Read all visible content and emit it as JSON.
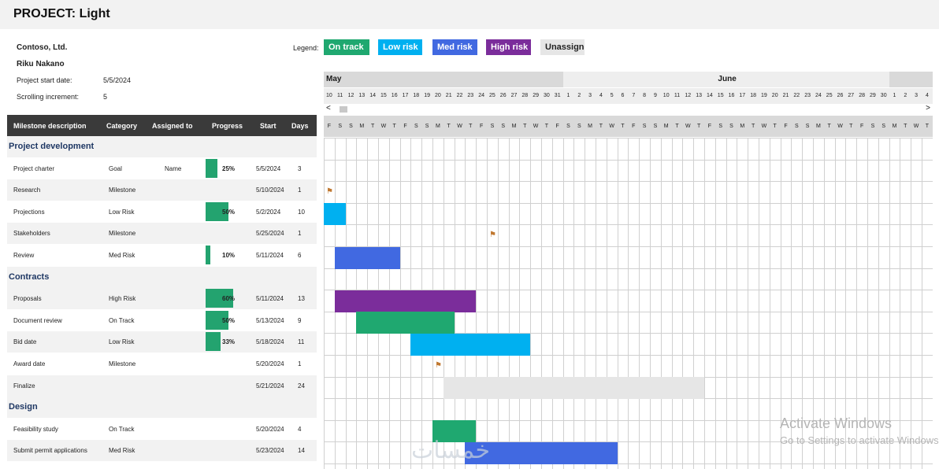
{
  "header": {
    "title": "PROJECT: Light"
  },
  "info": {
    "company": "Contoso, Ltd.",
    "manager": "Riku Nakano",
    "start_label": "Project start date:",
    "start_value": "5/5/2024",
    "scroll_label": "Scrolling increment:",
    "scroll_value": "5"
  },
  "legend": {
    "label": "Legend:",
    "items": [
      {
        "label": "On track",
        "color": "#1fa870"
      },
      {
        "label": "Low risk",
        "color": "#00b0f0"
      },
      {
        "label": "Med risk",
        "color": "#4169e1"
      },
      {
        "label": "High risk",
        "color": "#7b2d9b"
      },
      {
        "label": "Unassigned",
        "color": "#e6e6e6"
      }
    ]
  },
  "table": {
    "headers": [
      "Milestone description",
      "Category",
      "Assigned to",
      "Progress",
      "Start",
      "Days"
    ],
    "sections": [
      {
        "title": "Project development"
      },
      {
        "title": "Contracts"
      },
      {
        "title": "Design"
      }
    ],
    "rows": [
      {
        "desc": "Project charter",
        "category": "Goal",
        "assigned": "Name",
        "progress": 25,
        "progress_label": "25%",
        "start": "5/5/2024",
        "days": "3"
      },
      {
        "desc": "Research",
        "category": "Milestone",
        "assigned": "",
        "progress": 0,
        "progress_label": "",
        "start": "5/10/2024",
        "days": "1"
      },
      {
        "desc": "Projections",
        "category": "Low Risk",
        "assigned": "",
        "progress": 50,
        "progress_label": "50%",
        "start": "5/2/2024",
        "days": "10"
      },
      {
        "desc": "Stakeholders",
        "category": "Milestone",
        "assigned": "",
        "progress": 0,
        "progress_label": "",
        "start": "5/25/2024",
        "days": "1"
      },
      {
        "desc": "Review",
        "category": "Med Risk",
        "assigned": "",
        "progress": 10,
        "progress_label": "10%",
        "start": "5/11/2024",
        "days": "6"
      },
      {
        "desc": "Proposals",
        "category": "High Risk",
        "assigned": "",
        "progress": 60,
        "progress_label": "60%",
        "start": "5/11/2024",
        "days": "13"
      },
      {
        "desc": "Document review",
        "category": "On Track",
        "assigned": "",
        "progress": 50,
        "progress_label": "50%",
        "start": "5/13/2024",
        "days": "9"
      },
      {
        "desc": "Bid date",
        "category": "Low Risk",
        "assigned": "",
        "progress": 33,
        "progress_label": "33%",
        "start": "5/18/2024",
        "days": "11"
      },
      {
        "desc": "Award date",
        "category": "Milestone",
        "assigned": "",
        "progress": 0,
        "progress_label": "",
        "start": "5/20/2024",
        "days": "1"
      },
      {
        "desc": "Finalize",
        "category": "",
        "assigned": "",
        "progress": 0,
        "progress_label": "",
        "start": "5/21/2024",
        "days": "24"
      },
      {
        "desc": "Feasibility study",
        "category": "On Track",
        "assigned": "",
        "progress": 0,
        "progress_label": "",
        "start": "5/20/2024",
        "days": "4"
      },
      {
        "desc": "Submit permit applications",
        "category": "Med Risk",
        "assigned": "",
        "progress": 0,
        "progress_label": "",
        "start": "5/23/2024",
        "days": "14"
      }
    ]
  },
  "gantt": {
    "months": [
      {
        "label": "May",
        "days": 22
      },
      {
        "label": "June",
        "days": 30
      },
      {
        "label": "",
        "days": 4
      }
    ],
    "days": [
      "10",
      "11",
      "12",
      "13",
      "14",
      "15",
      "16",
      "17",
      "18",
      "19",
      "20",
      "21",
      "22",
      "23",
      "24",
      "25",
      "26",
      "27",
      "28",
      "29",
      "30",
      "31",
      "1",
      "2",
      "3",
      "4",
      "5",
      "6",
      "7",
      "8",
      "9",
      "10",
      "11",
      "12",
      "13",
      "14",
      "15",
      "16",
      "17",
      "18",
      "19",
      "20",
      "21",
      "22",
      "23",
      "24",
      "25",
      "26",
      "27",
      "28",
      "29",
      "30",
      "1",
      "2",
      "3",
      "4"
    ],
    "dow": [
      "F",
      "S",
      "S",
      "M",
      "T",
      "W",
      "T",
      "F",
      "S",
      "S",
      "M",
      "T",
      "W",
      "T",
      "F",
      "S",
      "S",
      "M",
      "T",
      "W",
      "T",
      "F",
      "S",
      "S",
      "M",
      "T",
      "W",
      "T",
      "F",
      "S",
      "S",
      "M",
      "T",
      "W",
      "T",
      "F",
      "S",
      "S",
      "M",
      "T",
      "W",
      "T",
      "F",
      "S",
      "S",
      "M",
      "T",
      "W",
      "T",
      "F",
      "S",
      "S",
      "M",
      "T",
      "W",
      "T"
    ],
    "scroll_left": "<",
    "scroll_right": ">",
    "flag_glyph": "⚑"
  },
  "watermark": {
    "line1": "Activate Windows",
    "line2": "Go to Settings to activate Windows.",
    "brand": "خمسات"
  }
}
